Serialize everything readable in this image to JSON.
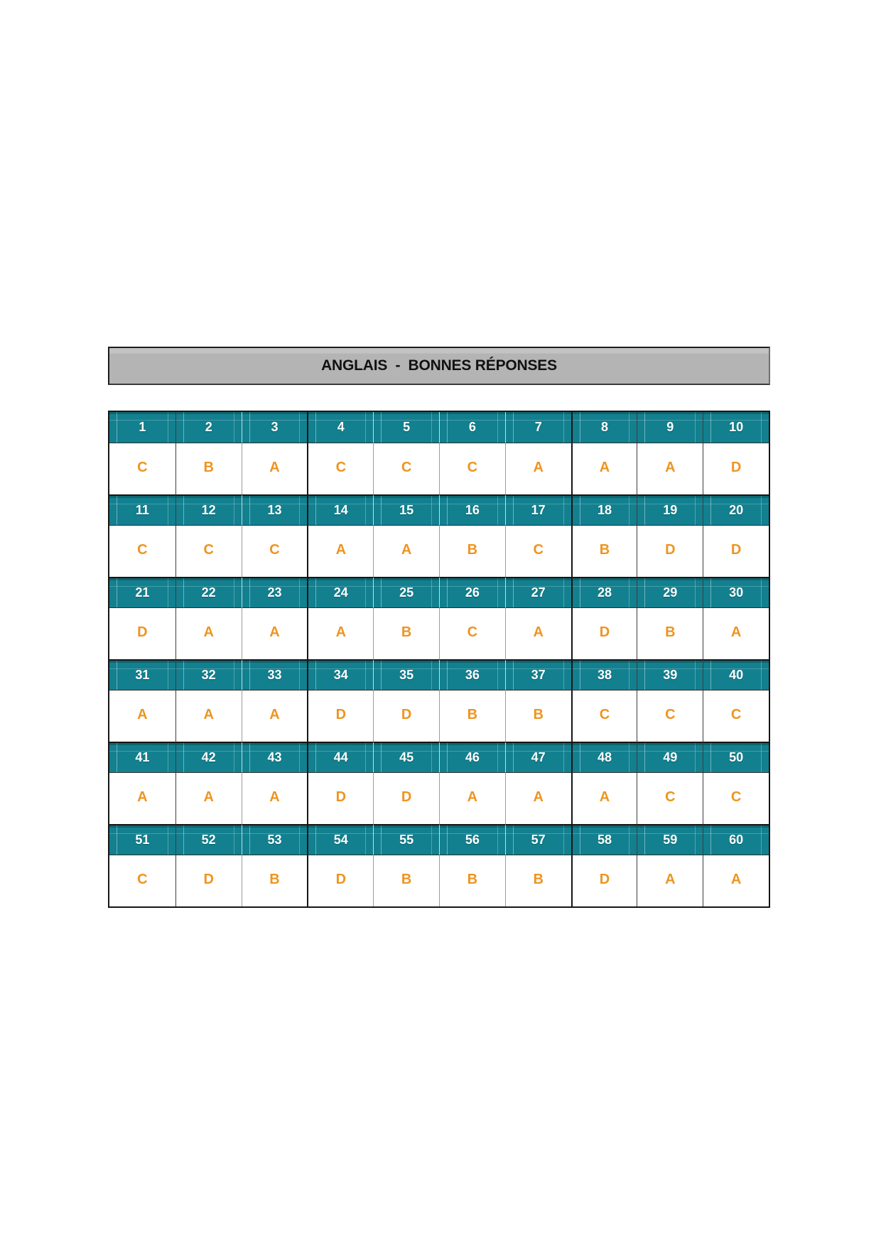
{
  "title_bar": {
    "label": "ANGLAIS  -  BONNES RÉPONSES"
  },
  "colors": {
    "header_teal": "#12808F",
    "answer_orange": "#EF941F",
    "title_gray": "#B4B4B4",
    "border_black": "#161616",
    "header_text": "#FFFFFF"
  },
  "answer_key": {
    "rows": [
      {
        "numbers": [
          "1",
          "2",
          "3",
          "4",
          "5",
          "6",
          "7",
          "8",
          "9",
          "10"
        ],
        "answers": [
          "C",
          "B",
          "A",
          "C",
          "C",
          "C",
          "A",
          "A",
          "A",
          "D"
        ]
      },
      {
        "numbers": [
          "11",
          "12",
          "13",
          "14",
          "15",
          "16",
          "17",
          "18",
          "19",
          "20"
        ],
        "answers": [
          "C",
          "C",
          "C",
          "A",
          "A",
          "B",
          "C",
          "B",
          "D",
          "D"
        ]
      },
      {
        "numbers": [
          "21",
          "22",
          "23",
          "24",
          "25",
          "26",
          "27",
          "28",
          "29",
          "30"
        ],
        "answers": [
          "D",
          "A",
          "A",
          "A",
          "B",
          "C",
          "A",
          "D",
          "B",
          "A"
        ]
      },
      {
        "numbers": [
          "31",
          "32",
          "33",
          "34",
          "35",
          "36",
          "37",
          "38",
          "39",
          "40"
        ],
        "answers": [
          "A",
          "A",
          "A",
          "D",
          "D",
          "B",
          "B",
          "C",
          "C",
          "C"
        ]
      },
      {
        "numbers": [
          "41",
          "42",
          "43",
          "44",
          "45",
          "46",
          "47",
          "48",
          "49",
          "50"
        ],
        "answers": [
          "A",
          "A",
          "A",
          "D",
          "D",
          "A",
          "A",
          "A",
          "C",
          "C"
        ]
      },
      {
        "numbers": [
          "51",
          "52",
          "53",
          "54",
          "55",
          "56",
          "57",
          "58",
          "59",
          "60"
        ],
        "answers": [
          "C",
          "D",
          "B",
          "D",
          "B",
          "B",
          "B",
          "D",
          "A",
          "A"
        ]
      }
    ]
  }
}
